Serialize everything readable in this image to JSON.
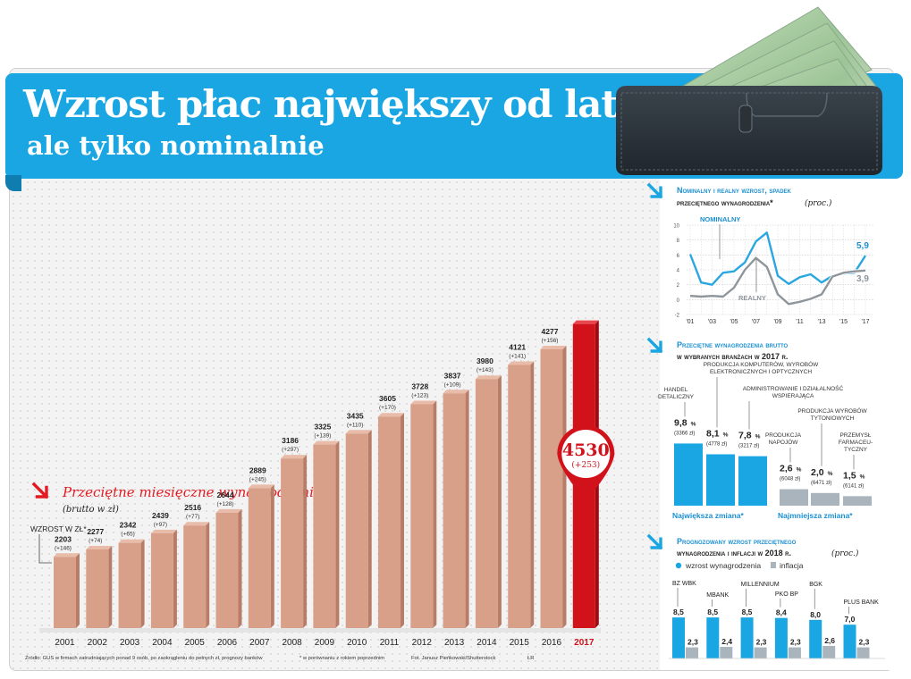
{
  "header": {
    "title_line1": "Wzrost płac największy od lat,",
    "title_line2": "ale tylko nominalnie"
  },
  "colors": {
    "accent_blue": "#1aa6e3",
    "bar_salmon": "#d9a089",
    "bar_highlight": "#d1121b",
    "inflation_gray": "#a9b4bd"
  },
  "chart_data": [
    {
      "type": "bar",
      "title": "Przeciętne miesięczne wynagrodzenie",
      "subtitle": "(brutto w zł)",
      "increase_label": "WZROST W ZŁ*",
      "categories": [
        "2001",
        "2002",
        "2003",
        "2004",
        "2005",
        "2006",
        "2007",
        "2008",
        "2009",
        "2010",
        "2011",
        "2012",
        "2013",
        "2014",
        "2015",
        "2016",
        "2017"
      ],
      "values": [
        2203,
        2277,
        2342,
        2439,
        2516,
        2644,
        2889,
        3186,
        3325,
        3435,
        3605,
        3728,
        3837,
        3980,
        4121,
        4277,
        4530
      ],
      "value_labels": [
        "2203",
        "2277",
        "2342",
        "2439",
        "2516",
        "2644",
        "2889",
        "3186",
        "3325",
        "3435",
        "3605",
        "3728",
        "3837",
        "3980",
        "4121",
        "4277",
        "4530"
      ],
      "increase_labels": [
        "(+146)",
        "(+74)",
        "(+65)",
        "(+97)",
        "(+77)",
        "(+128)",
        "(+245)",
        "(+297)",
        "(+139)",
        "(+110)",
        "(+170)",
        "(+123)",
        "(+109)",
        "(+143)",
        "(+141)",
        "(+156)",
        "(+253)"
      ],
      "highlight_index": 16,
      "source": "Źródło: GUS w firmach zatrudniających ponad 9 osób, po zaokrągleniu do pełnych zł, prognozy banków",
      "footnote": "* w porównaniu z rokiem poprzednim",
      "photo_credit": "Fot. Janusz Pieńkowski/Shutterstock",
      "initials": "ŁR"
    },
    {
      "type": "line",
      "title_line1": "Nominalny i realny wzrost, spadek",
      "title_line2": "przeciętnego wynagrodzenia*",
      "title_unit": "(proc.)",
      "x": [
        2001,
        2002,
        2003,
        2004,
        2005,
        2006,
        2007,
        2008,
        2009,
        2010,
        2011,
        2012,
        2013,
        2014,
        2015,
        2016,
        2017
      ],
      "x_tick_labels": [
        "'01",
        "'03",
        "'05",
        "'07",
        "'09",
        "'11",
        "'13",
        "'15",
        "'17"
      ],
      "y_ticks": [
        "10",
        "8",
        "6",
        "4",
        "2",
        "0",
        "-2"
      ],
      "ylim": [
        -2,
        10
      ],
      "series": [
        {
          "name": "NOMINALNY",
          "values": [
            6.1,
            2.3,
            2.0,
            3.6,
            3.8,
            5.0,
            7.8,
            9.0,
            3.2,
            2.1,
            3.0,
            3.4,
            2.3,
            3.2,
            3.5,
            3.6,
            5.9
          ],
          "end_label": "5,9"
        },
        {
          "name": "REALNY",
          "values": [
            0.5,
            0.4,
            0.5,
            0.4,
            1.6,
            4.0,
            5.6,
            4.4,
            0.7,
            -0.6,
            -0.3,
            0.1,
            0.7,
            3.1,
            3.6,
            3.8,
            3.9
          ],
          "end_label": "3,9"
        }
      ]
    },
    {
      "type": "bar",
      "title_line1": "Przeciętne wynagrodzenia brutto",
      "title_line2": "w wybranych branżach w 2017 r.",
      "groups": [
        {
          "label": "Największa zmiana*",
          "bars": [
            {
              "category": "HANDEL DETALICZNY",
              "value": 9.8,
              "value_label": "9,8",
              "amount": "(3366 zł)"
            },
            {
              "category": "PRODUKCJA KOMPUTERÓW, WYROBÓW ELEKTRONICZNYCH I OPTYCZNYCH",
              "value": 8.1,
              "value_label": "8,1",
              "amount": "(4778 zł)"
            },
            {
              "category": "ADMINISTROWANIE I DZIAŁALNOŚĆ WSPIERAJĄCA",
              "value": 7.8,
              "value_label": "7,8",
              "amount": "(3217 zł)"
            }
          ]
        },
        {
          "label": "Najmniejsza zmiana*",
          "bars": [
            {
              "category": "PRODUKCJA NAPOJÓW",
              "value": 2.6,
              "value_label": "2,6",
              "amount": "(6048 zł)"
            },
            {
              "category": "PRODUKCJA WYROBÓW TYTONIOWYCH",
              "value": 2.0,
              "value_label": "2,0",
              "amount": "(6471 zł)"
            },
            {
              "category": "PRZEMYSŁ FARMACEU-TYCZNY",
              "value": 1.5,
              "value_label": "1,5",
              "amount": "(6141 zł)"
            }
          ]
        }
      ]
    },
    {
      "type": "bar",
      "title_line1": "Prognozowany wzrost przeciętnego",
      "title_line2": "wynagrodzenia i inflacji w 2018 r.",
      "title_unit": "(proc.)",
      "legend": [
        "wzrost wynagrodzenia",
        "inflacja"
      ],
      "categories": [
        "BZ WBK",
        "MBANK",
        "MILLENNIUM",
        "PKO BP",
        "BGK",
        "PLUS BANK"
      ],
      "series": [
        {
          "name": "wzrost wynagrodzenia",
          "values": [
            8.5,
            8.5,
            8.5,
            8.4,
            8.0,
            7.0
          ],
          "labels": [
            "8,5",
            "8,5",
            "8,5",
            "8,4",
            "8,0",
            "7,0"
          ]
        },
        {
          "name": "inflacja",
          "values": [
            2.3,
            2.4,
            2.3,
            2.3,
            2.6,
            2.3
          ],
          "labels": [
            "2,3",
            "2,4",
            "2,3",
            "2,3",
            "2,6",
            "2,3"
          ]
        }
      ]
    }
  ]
}
